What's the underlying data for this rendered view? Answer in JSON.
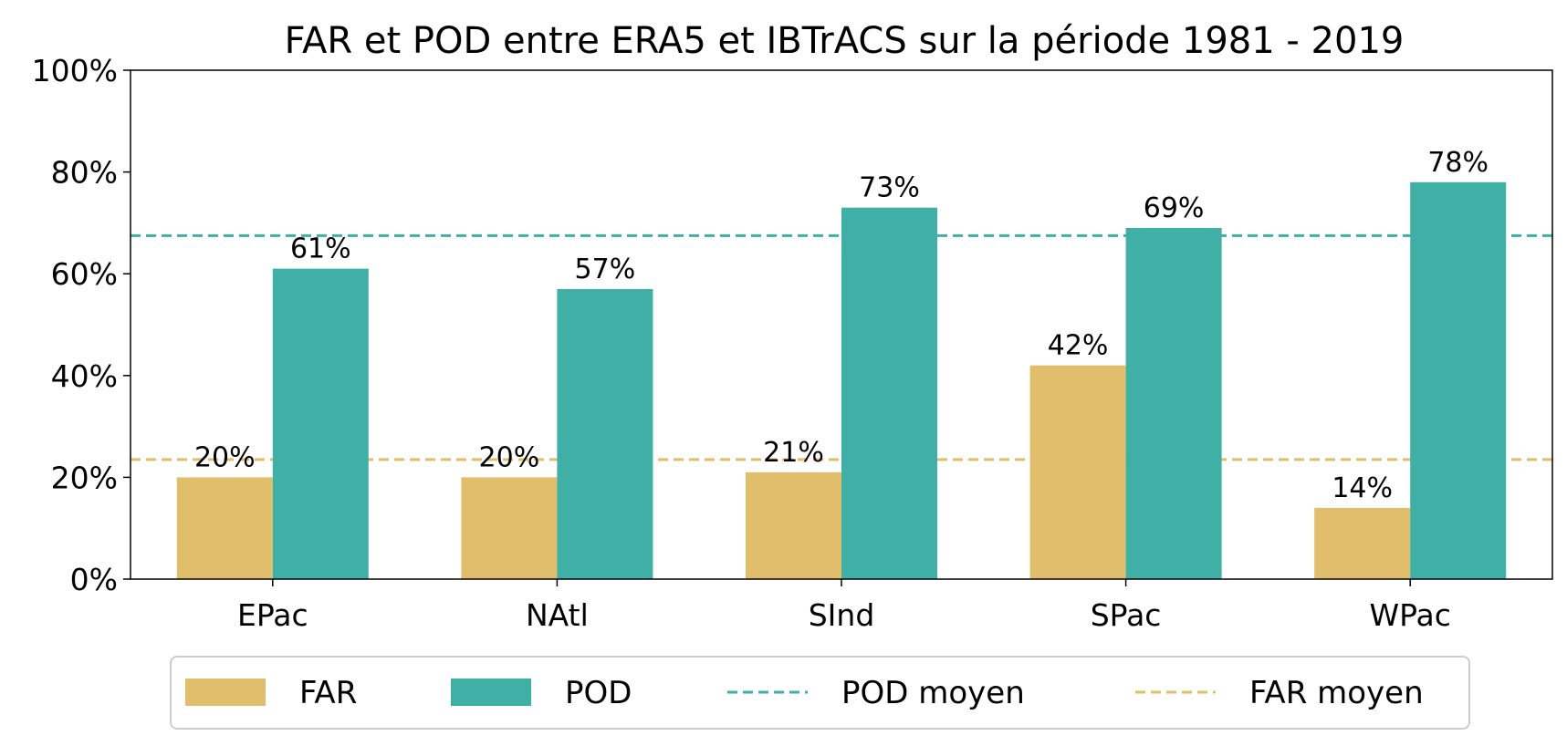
{
  "chart_data": {
    "type": "bar",
    "title": "FAR et POD entre ERA5 et IBTrACS sur la période 1981 - 2019",
    "xlabel": "",
    "ylabel": "",
    "categories": [
      "EPac",
      "NAtl",
      "SInd",
      "SPac",
      "WPac"
    ],
    "series": [
      {
        "name": "FAR",
        "values": [
          20,
          20,
          21,
          42,
          14
        ],
        "labels": [
          "20%",
          "20%",
          "21%",
          "42%",
          "14%"
        ],
        "color": "#E0BE6B"
      },
      {
        "name": "POD",
        "values": [
          61,
          57,
          73,
          69,
          78
        ],
        "labels": [
          "61%",
          "57%",
          "73%",
          "69%",
          "78%"
        ],
        "color": "#40AFA5"
      }
    ],
    "reference_lines": [
      {
        "name": "POD moyen",
        "value": 67.5,
        "color": "#40AFA5",
        "style": "dashed"
      },
      {
        "name": "FAR moyen",
        "value": 23.5,
        "color": "#E0BE6B",
        "style": "dashed"
      }
    ],
    "ylim": [
      0,
      100
    ],
    "yticks": [
      0,
      20,
      40,
      60,
      80,
      100
    ],
    "ytick_labels": [
      "0%",
      "20%",
      "40%",
      "60%",
      "80%",
      "100%"
    ],
    "grid": false,
    "legend": {
      "placement": "bottom-center",
      "entries": [
        "FAR",
        "POD",
        "POD moyen",
        "FAR moyen"
      ]
    }
  }
}
